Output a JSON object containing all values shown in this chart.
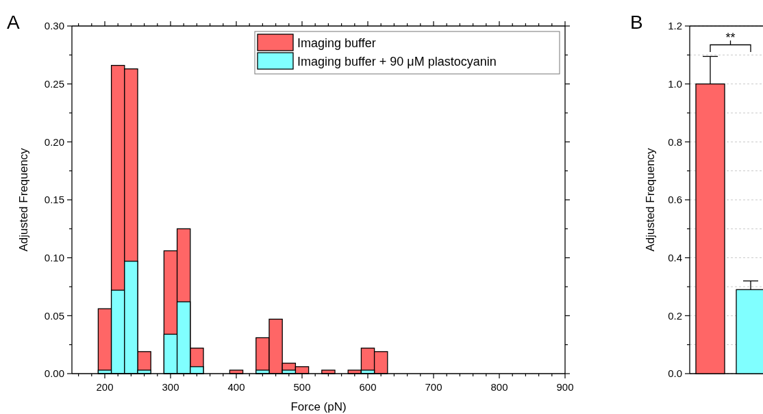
{
  "chart_data": [
    {
      "type": "histogram",
      "title": "A",
      "xlabel": "Force (pN)",
      "ylabel": "Adjusted Frequency",
      "bins": [
        190,
        210,
        230,
        250,
        270,
        290,
        310,
        330,
        350,
        370,
        390,
        410,
        430,
        450,
        470,
        490,
        510,
        530,
        550,
        570,
        590,
        610,
        630
      ],
      "series": [
        {
          "name": "Imaging buffer",
          "color": "#ff6666",
          "values": [
            0.056,
            0.266,
            0.263,
            0.019,
            0,
            0.106,
            0.125,
            0.022,
            0,
            0,
            0.003,
            0,
            0.031,
            0.047,
            0.009,
            0.006,
            0,
            0.003,
            0,
            0.003,
            0.022,
            0.019
          ]
        },
        {
          "name": "Imaging buffer + 90 μM plastocyanin",
          "color": "#80ffff",
          "values": [
            0.003,
            0.072,
            0.097,
            0.003,
            0,
            0.034,
            0.062,
            0.006,
            0,
            0,
            0,
            0,
            0.003,
            0,
            0.003,
            0,
            0,
            0,
            0,
            0,
            0.003,
            0
          ]
        }
      ],
      "xlim": [
        150,
        900
      ],
      "xticks": [
        {
          "value": 160,
          "label": null
        },
        {
          "value": 180,
          "label": null
        },
        200,
        {
          "value": 220,
          "label": null
        },
        {
          "value": 240,
          "label": null
        },
        {
          "value": 260,
          "label": null
        },
        {
          "value": 280,
          "label": null
        },
        300,
        {
          "value": 320,
          "label": null
        },
        {
          "value": 340,
          "label": null
        },
        {
          "value": 360,
          "label": null
        },
        {
          "value": 380,
          "label": null
        },
        400,
        {
          "value": 420,
          "label": null
        },
        {
          "value": 440,
          "label": null
        },
        {
          "value": 460,
          "label": null
        },
        {
          "value": 480,
          "label": null
        },
        500,
        {
          "value": 520,
          "label": null
        },
        {
          "value": 540,
          "label": null
        },
        {
          "value": 560,
          "label": null
        },
        {
          "value": 580,
          "label": null
        },
        600,
        {
          "value": 620,
          "label": null
        },
        {
          "value": 640,
          "label": null
        },
        {
          "value": 660,
          "label": null
        },
        {
          "value": 680,
          "label": null
        },
        700,
        {
          "value": 720,
          "label": null
        },
        {
          "value": 740,
          "label": null
        },
        {
          "value": 760,
          "label": null
        },
        {
          "value": 780,
          "label": null
        },
        800,
        {
          "value": 820,
          "label": null
        },
        {
          "value": 840,
          "label": null
        },
        {
          "value": 860,
          "label": null
        },
        {
          "value": 880,
          "label": null
        },
        900
      ],
      "ylim": [
        0,
        0.3
      ],
      "yticks": [
        {
          "value": 0,
          "label": "0.00"
        },
        {
          "value": 0.025,
          "label": null
        },
        {
          "value": 0.05,
          "label": "0.05"
        },
        {
          "value": 0.075,
          "label": null
        },
        {
          "value": 0.1,
          "label": "0.10"
        },
        {
          "value": 0.125,
          "label": null
        },
        {
          "value": 0.15,
          "label": "0.15"
        },
        {
          "value": 0.175,
          "label": null
        },
        {
          "value": 0.2,
          "label": "0.20"
        },
        {
          "value": 0.225,
          "label": null
        },
        {
          "value": 0.25,
          "label": "0.25"
        },
        {
          "value": 0.275,
          "label": null
        },
        {
          "value": 0.3,
          "label": "0.30"
        }
      ],
      "legend": "top right"
    },
    {
      "type": "bar",
      "title": "B",
      "ylabel": "Adjusted Frequency",
      "categories": [
        null,
        null
      ],
      "values": [
        1.0,
        0.29
      ],
      "colors": [
        "#ff6666",
        "#80ffff"
      ],
      "errors": [
        0.095,
        0.03
      ],
      "ylim": [
        0,
        1.2
      ],
      "yticks": [
        {
          "value": 0,
          "label": "0.0"
        },
        {
          "value": 0.1,
          "label": null
        },
        {
          "value": 0.2,
          "label": "0.2"
        },
        {
          "value": 0.3,
          "label": null
        },
        {
          "value": 0.4,
          "label": "0.4"
        },
        {
          "value": 0.5,
          "label": null
        },
        {
          "value": 0.6,
          "label": "0.6"
        },
        {
          "value": 0.7,
          "label": null
        },
        {
          "value": 0.8,
          "label": "0.8"
        },
        {
          "value": 0.9,
          "label": null
        },
        {
          "value": 1.0,
          "label": "1.0"
        },
        {
          "value": 1.1,
          "label": null
        },
        {
          "value": 1.2,
          "label": "1.2"
        }
      ],
      "grid": "y",
      "annotations": [
        "**"
      ]
    }
  ]
}
